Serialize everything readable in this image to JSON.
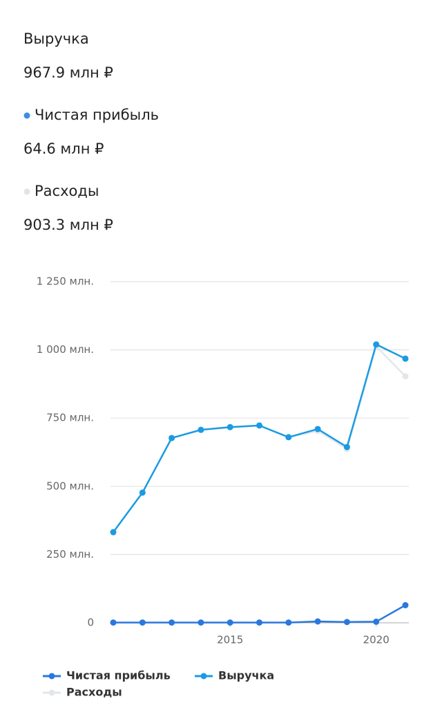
{
  "summary": [
    {
      "label": "Выручка",
      "value": "967.9 млн ₽"
    },
    {
      "label": "Чистая прибыль",
      "value": "64.6 млн ₽",
      "dot": "#3d8fe0"
    },
    {
      "label": "Расходы",
      "value": "903.3 млн ₽",
      "dot": "#dfe5ea"
    }
  ],
  "chart_data": {
    "type": "line",
    "x": [
      2011,
      2012,
      2013,
      2014,
      2015,
      2016,
      2017,
      2018,
      2019,
      2020,
      2021
    ],
    "series": [
      {
        "name": "Чистая прибыль",
        "color": "#2a78de",
        "values": [
          1,
          1,
          1,
          1,
          1,
          1,
          1,
          5,
          3,
          4,
          64.6
        ]
      },
      {
        "name": "Выручка",
        "color": "#1a9be3",
        "values": [
          332,
          477,
          677,
          707,
          717,
          723,
          680,
          710,
          644,
          1020,
          967.9
        ]
      },
      {
        "name": "Расходы",
        "color": "#e3e7ea",
        "values": [
          332,
          477,
          677,
          707,
          717,
          723,
          680,
          703,
          637,
          1013,
          903.3
        ]
      }
    ],
    "xlim": [
      2011,
      2021
    ],
    "xticks": [
      2015,
      2020
    ],
    "ylim": [
      0,
      1250
    ],
    "yticks": [
      0,
      {
        "value": 250,
        "label": "250 млн."
      },
      {
        "value": 500,
        "label": "500 млн."
      },
      {
        "value": 750,
        "label": "750 млн."
      },
      {
        "value": 1000,
        "label": "1 000 млн."
      },
      {
        "value": 1250,
        "label": "1 250 млн."
      }
    ],
    "grid": true
  }
}
